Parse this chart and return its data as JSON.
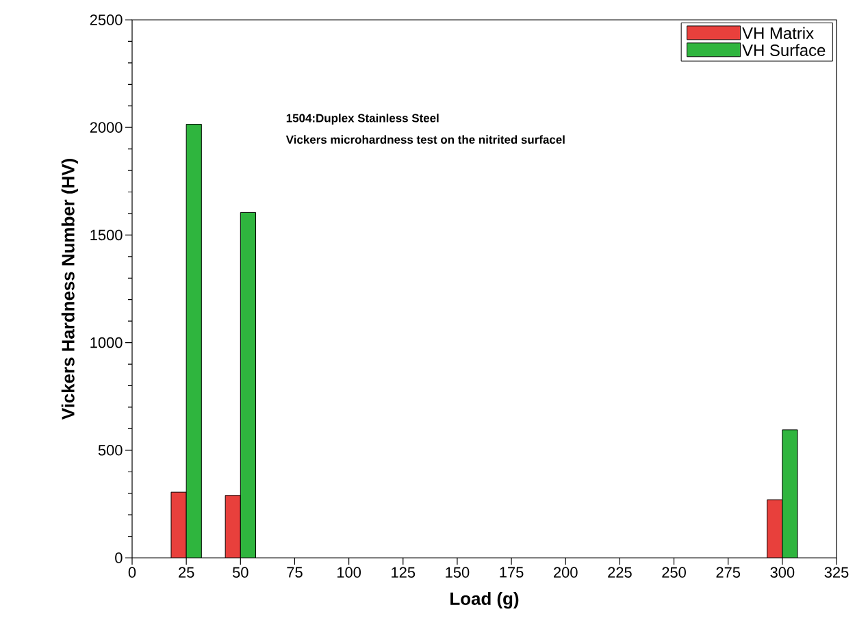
{
  "chart_data": {
    "type": "bar",
    "xlabel": "Load (g)",
    "ylabel": "Vickers Hardness Number (HV)",
    "x": [
      25,
      50,
      300
    ],
    "series": [
      {
        "name": "VH Matrix",
        "color": "#e8403c",
        "values": [
          305,
          290,
          270
        ]
      },
      {
        "name": "VH Surface",
        "color": "#2fb53e",
        "values": [
          2015,
          1605,
          595
        ]
      }
    ],
    "xlim": [
      0,
      325
    ],
    "xticks": [
      0,
      25,
      50,
      75,
      100,
      125,
      150,
      175,
      200,
      225,
      250,
      275,
      300,
      325
    ],
    "ylim": [
      0,
      2500
    ],
    "yticks": [
      0,
      500,
      1000,
      1500,
      2000,
      2500
    ],
    "annotations": [
      "1504:Duplex Stainless Steel",
      "Vickers microhardness test on the nitrited surfacel"
    ],
    "legend": "top right",
    "grid": false
  }
}
